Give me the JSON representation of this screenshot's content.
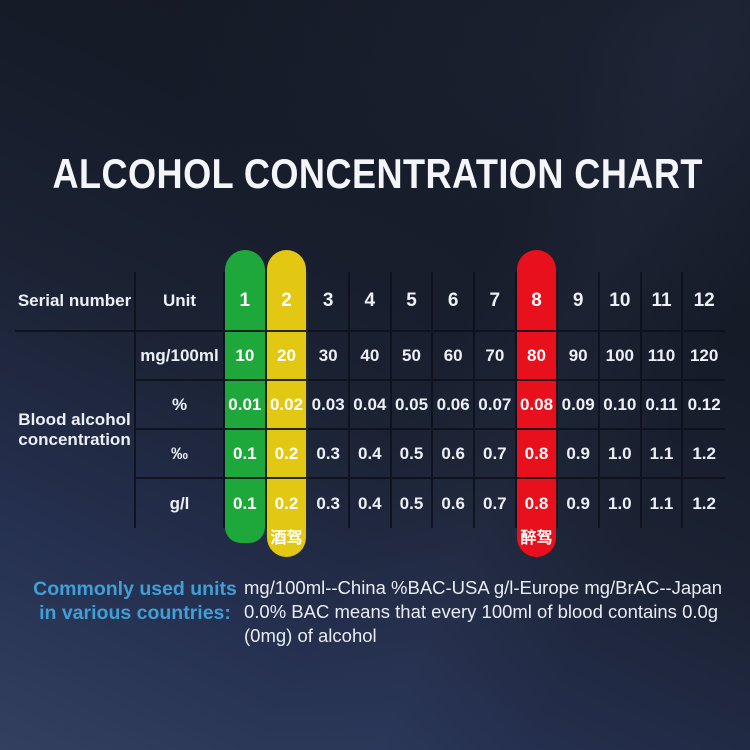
{
  "title": "ALCOHOL CONCENTRATION CHART",
  "table": {
    "header": {
      "serial_label": "Serial number",
      "unit_label": "Unit",
      "columns": [
        "1",
        "2",
        "3",
        "4",
        "5",
        "6",
        "7",
        "8",
        "9",
        "10",
        "11",
        "12"
      ]
    },
    "row_group_label": "Blood alcohol concentration",
    "rows": [
      {
        "unit": "mg/100ml",
        "values": [
          "10",
          "20",
          "30",
          "40",
          "50",
          "60",
          "70",
          "80",
          "90",
          "100",
          "110",
          "120"
        ]
      },
      {
        "unit": "%",
        "values": [
          "0.01",
          "0.02",
          "0.03",
          "0.04",
          "0.05",
          "0.06",
          "0.07",
          "0.08",
          "0.09",
          "0.10",
          "0.11",
          "0.12"
        ]
      },
      {
        "unit": "‰",
        "values": [
          "0.1",
          "0.2",
          "0.3",
          "0.4",
          "0.5",
          "0.6",
          "0.7",
          "0.8",
          "0.9",
          "1.0",
          "1.1",
          "1.2"
        ]
      },
      {
        "unit": "g/l",
        "values": [
          "0.1",
          "0.2",
          "0.3",
          "0.4",
          "0.5",
          "0.6",
          "0.7",
          "0.8",
          "0.9",
          "1.0",
          "1.1",
          "1.2"
        ]
      }
    ],
    "highlights": [
      {
        "column": 1,
        "color": "#1ea83c",
        "label": ""
      },
      {
        "column": 2,
        "color": "#e2c813",
        "label": "酒驾"
      },
      {
        "column": 8,
        "color": "#e8101c",
        "label": "醉驾"
      }
    ]
  },
  "footer": {
    "lead_line1": "Commonly used units",
    "lead_line2": "in various countries:",
    "lead_color": "#3f9fd6",
    "body_line1": "mg/100ml--China %BAC-USA g/l-Europe mg/BrAC--Japan",
    "body_line2": "0.0% BAC means that every 100ml of blood contains 0.0g",
    "body_line3": "(0mg) of alcohol"
  },
  "chart_data": {
    "type": "table",
    "title": "ALCOHOL CONCENTRATION CHART",
    "columns": [
      "Serial number",
      "Unit",
      "1",
      "2",
      "3",
      "4",
      "5",
      "6",
      "7",
      "8",
      "9",
      "10",
      "11",
      "12"
    ],
    "rows": [
      [
        "Blood alcohol concentration",
        "mg/100ml",
        10,
        20,
        30,
        40,
        50,
        60,
        70,
        80,
        90,
        100,
        110,
        120
      ],
      [
        "Blood alcohol concentration",
        "%",
        0.01,
        0.02,
        0.03,
        0.04,
        0.05,
        0.06,
        0.07,
        0.08,
        0.09,
        0.1,
        0.11,
        0.12
      ],
      [
        "Blood alcohol concentration",
        "‰",
        0.1,
        0.2,
        0.3,
        0.4,
        0.5,
        0.6,
        0.7,
        0.8,
        0.9,
        1.0,
        1.1,
        1.2
      ],
      [
        "Blood alcohol concentration",
        "g/l",
        0.1,
        0.2,
        0.3,
        0.4,
        0.5,
        0.6,
        0.7,
        0.8,
        0.9,
        1.0,
        1.1,
        1.2
      ]
    ],
    "highlighted_columns": [
      {
        "serial": 1,
        "color": "#1ea83c"
      },
      {
        "serial": 2,
        "color": "#e2c813",
        "annotation": "酒驾"
      },
      {
        "serial": 8,
        "color": "#e8101c",
        "annotation": "醉驾"
      }
    ],
    "legend_position": "none",
    "grid": true
  }
}
